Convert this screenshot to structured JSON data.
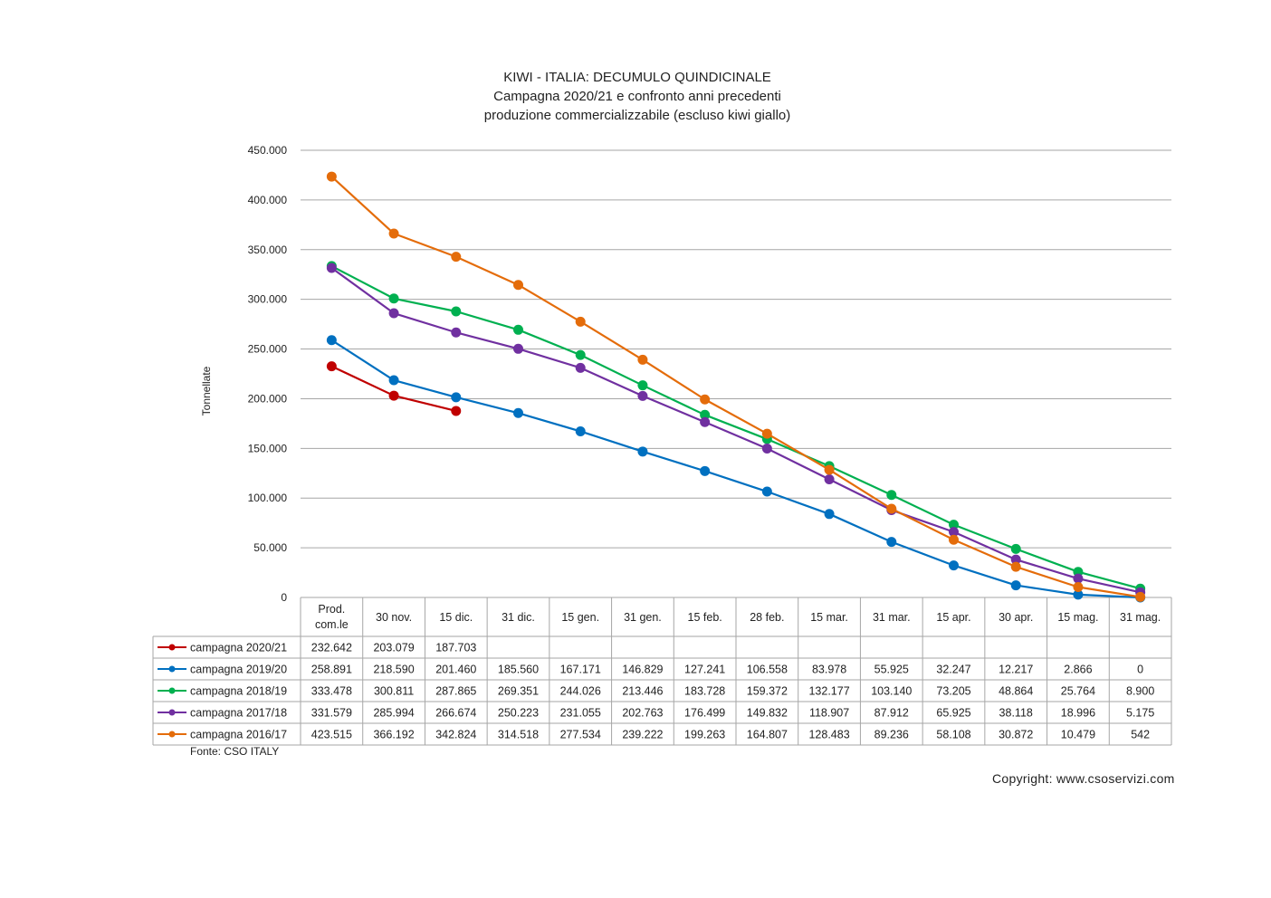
{
  "chart_data": {
    "type": "line",
    "title": "KIWI - ITALIA: DECUMULO QUINDICINALE",
    "subtitle": "Campagna 2020/21 e confronto anni precedenti",
    "subtitle2": "produzione  commercializzabile  (escluso kiwi giallo)",
    "ylabel": "Tonnellate",
    "xlabel": "",
    "ylim": [
      0,
      450000
    ],
    "yticks": [
      0,
      50000,
      100000,
      150000,
      200000,
      250000,
      300000,
      350000,
      400000,
      450000
    ],
    "ytick_labels": [
      "0",
      "50.000",
      "100.000",
      "150.000",
      "200.000",
      "250.000",
      "300.000",
      "350.000",
      "400.000",
      "450.000"
    ],
    "grid": true,
    "legend_placement": "data-table",
    "categories": [
      "Prod. com.le",
      "30 nov.",
      "15 dic.",
      "31 dic.",
      "15 gen.",
      "31 gen.",
      "15 feb.",
      "28 feb.",
      "15 mar.",
      "31 mar.",
      "15 apr.",
      "30 apr.",
      "15 mag.",
      "31 mag."
    ],
    "series": [
      {
        "name": "campagna 2020/21",
        "color": "#c00000",
        "values": [
          232642,
          203079,
          187703,
          null,
          null,
          null,
          null,
          null,
          null,
          null,
          null,
          null,
          null,
          null
        ],
        "labels": [
          "232.642",
          "203.079",
          "187.703",
          "",
          "",
          "",
          "",
          "",
          "",
          "",
          "",
          "",
          "",
          ""
        ]
      },
      {
        "name": "campagna 2019/20",
        "color": "#0070c0",
        "values": [
          258891,
          218590,
          201460,
          185560,
          167171,
          146829,
          127241,
          106558,
          83978,
          55925,
          32247,
          12217,
          2866,
          0
        ],
        "labels": [
          "258.891",
          "218.590",
          "201.460",
          "185.560",
          "167.171",
          "146.829",
          "127.241",
          "106.558",
          "83.978",
          "55.925",
          "32.247",
          "12.217",
          "2.866",
          "0"
        ]
      },
      {
        "name": "campagna 2018/19",
        "color": "#00b050",
        "values": [
          333478,
          300811,
          287865,
          269351,
          244026,
          213446,
          183728,
          159372,
          132177,
          103140,
          73205,
          48864,
          25764,
          8900
        ],
        "labels": [
          "333.478",
          "300.811",
          "287.865",
          "269.351",
          "244.026",
          "213.446",
          "183.728",
          "159.372",
          "132.177",
          "103.140",
          "73.205",
          "48.864",
          "25.764",
          "8.900"
        ]
      },
      {
        "name": "campagna 2017/18",
        "color": "#7030a0",
        "values": [
          331579,
          285994,
          266674,
          250223,
          231055,
          202763,
          176499,
          149832,
          118907,
          87912,
          65925,
          38118,
          18996,
          5175
        ],
        "labels": [
          "331.579",
          "285.994",
          "266.674",
          "250.223",
          "231.055",
          "202.763",
          "176.499",
          "149.832",
          "118.907",
          "87.912",
          "65.925",
          "38.118",
          "18.996",
          "5.175"
        ]
      },
      {
        "name": "campagna 2016/17",
        "color": "#e46c0a",
        "values": [
          423515,
          366192,
          342824,
          314518,
          277534,
          239222,
          199263,
          164807,
          128483,
          89236,
          58108,
          30872,
          10479,
          542
        ],
        "labels": [
          "423.515",
          "366.192",
          "342.824",
          "314.518",
          "277.534",
          "239.222",
          "199.263",
          "164.807",
          "128.483",
          "89.236",
          "58.108",
          "30.872",
          "10.479",
          "542"
        ]
      }
    ]
  },
  "footer": {
    "source": "Fonte: CSO ITALY",
    "copyright": "Copyright:  www.csoservizi.com"
  }
}
